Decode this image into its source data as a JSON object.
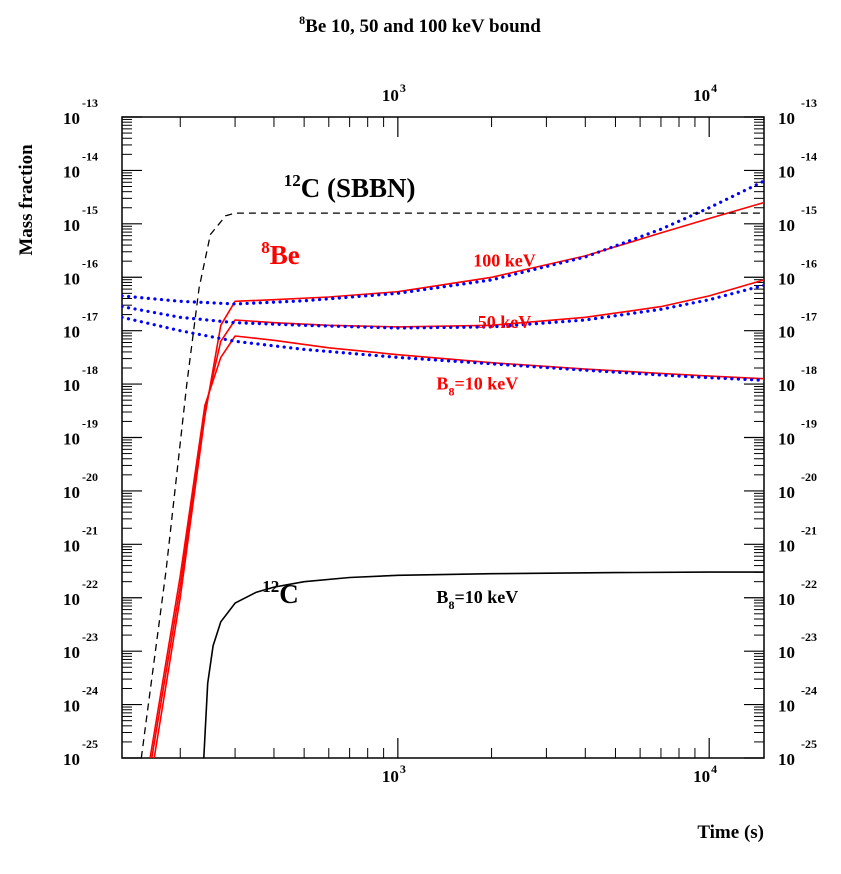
{
  "chart_data": {
    "type": "line",
    "title": {
      "sup": "8",
      "text": "Be 10, 50 and 100 keV bound"
    },
    "xlabel": "Time (s)",
    "ylabel": "Mass fraction",
    "x_scale": "log",
    "y_scale": "log",
    "xlim": [
      130,
      15000
    ],
    "ylim": [
      1e-25,
      1e-13
    ],
    "x_ticks": [
      {
        "base": "10",
        "exp": "3",
        "value": 1000
      },
      {
        "base": "10",
        "exp": "4",
        "value": 10000
      }
    ],
    "y_ticks": [
      {
        "base": "10",
        "exp": "-13",
        "value": -13
      },
      {
        "base": "10",
        "exp": "-14",
        "value": -14
      },
      {
        "base": "10",
        "exp": "-15",
        "value": -15
      },
      {
        "base": "10",
        "exp": "-16",
        "value": -16
      },
      {
        "base": "10",
        "exp": "-17",
        "value": -17
      },
      {
        "base": "10",
        "exp": "-18",
        "value": -18
      },
      {
        "base": "10",
        "exp": "-19",
        "value": -19
      },
      {
        "base": "10",
        "exp": "-20",
        "value": -20
      },
      {
        "base": "10",
        "exp": "-21",
        "value": -21
      },
      {
        "base": "10",
        "exp": "-22",
        "value": -22
      },
      {
        "base": "10",
        "exp": "-23",
        "value": -23
      },
      {
        "base": "10",
        "exp": "-24",
        "value": -24
      },
      {
        "base": "10",
        "exp": "-25",
        "value": -25
      }
    ],
    "colors": {
      "be8": "#ff0000",
      "fit": "#0000ff",
      "c12": "#000000",
      "sbbn": "#000000"
    },
    "series": [
      {
        "id": "be8-100",
        "style": "solid",
        "color": "#ff0000",
        "x": [
          165,
          200,
          240,
          270,
          300,
          400,
          600,
          1000,
          2000,
          4000,
          7000,
          10000,
          15000
        ],
        "log_y": [
          -25,
          -22,
          -18.6,
          -16.9,
          -16.45,
          -16.42,
          -16.37,
          -16.27,
          -16.0,
          -15.6,
          -15.17,
          -14.9,
          -14.6
        ]
      },
      {
        "id": "be8-50",
        "style": "solid",
        "color": "#ff0000",
        "x": [
          162,
          200,
          240,
          270,
          300,
          400,
          600,
          1000,
          2000,
          4000,
          7000,
          10000,
          15000
        ],
        "log_y": [
          -25,
          -21.8,
          -18.5,
          -17.2,
          -16.8,
          -16.85,
          -16.9,
          -16.93,
          -16.9,
          -16.75,
          -16.55,
          -16.35,
          -16.05
        ]
      },
      {
        "id": "be8-10",
        "style": "solid",
        "color": "#ff0000",
        "x": [
          160,
          200,
          240,
          270,
          300,
          400,
          600,
          1000,
          2000,
          4000,
          7000,
          10000,
          15000
        ],
        "log_y": [
          -25,
          -21.6,
          -18.4,
          -17.5,
          -17.1,
          -17.18,
          -17.32,
          -17.45,
          -17.6,
          -17.72,
          -17.8,
          -17.85,
          -17.9
        ]
      },
      {
        "id": "fit-100",
        "style": "dotted",
        "color": "#0000ff",
        "x": [
          130,
          200,
          300,
          500,
          1000,
          2000,
          4000,
          7000,
          10000,
          15000
        ],
        "log_y": [
          -16.35,
          -16.45,
          -16.5,
          -16.44,
          -16.3,
          -16.05,
          -15.62,
          -15.1,
          -14.7,
          -14.2
        ]
      },
      {
        "id": "fit-50",
        "style": "dotted",
        "color": "#0000ff",
        "x": [
          130,
          200,
          300,
          500,
          1000,
          2000,
          4000,
          7000,
          10000,
          15000
        ],
        "log_y": [
          -16.55,
          -16.75,
          -16.85,
          -16.9,
          -16.95,
          -16.93,
          -16.8,
          -16.6,
          -16.42,
          -16.15
        ]
      },
      {
        "id": "fit-10",
        "style": "dotted",
        "color": "#0000ff",
        "x": [
          130,
          200,
          300,
          500,
          1000,
          2000,
          4000,
          7000,
          10000,
          15000
        ],
        "log_y": [
          -16.75,
          -17.0,
          -17.2,
          -17.35,
          -17.5,
          -17.62,
          -17.74,
          -17.83,
          -17.88,
          -17.93
        ]
      },
      {
        "id": "c12-sbbn",
        "style": "dashed",
        "color": "#000000",
        "x": [
          150,
          180,
          210,
          230,
          250,
          280,
          300,
          320,
          400,
          1000,
          5000,
          15000
        ],
        "log_y": [
          -25,
          -21.5,
          -18.0,
          -16.2,
          -15.2,
          -14.85,
          -14.8,
          -14.8,
          -14.8,
          -14.8,
          -14.8,
          -14.8
        ]
      },
      {
        "id": "c12-10",
        "style": "solid",
        "color": "#000000",
        "x": [
          238,
          245,
          255,
          270,
          300,
          350,
          400,
          500,
          700,
          1000,
          2000,
          5000,
          10000,
          15000
        ],
        "log_y": [
          -25,
          -23.6,
          -22.9,
          -22.45,
          -22.1,
          -21.9,
          -21.8,
          -21.7,
          -21.62,
          -21.58,
          -21.55,
          -21.53,
          -21.52,
          -21.52
        ]
      }
    ],
    "annotations": [
      {
        "id": "c12-sbbn-label",
        "sup": "12",
        "text": "C (SBBN)",
        "color": "#000000",
        "at": [
          700,
          -14.5
        ]
      },
      {
        "id": "be8-label",
        "sup": "8",
        "text": "Be",
        "color": "#ff0000",
        "at": [
          420,
          -15.75
        ]
      },
      {
        "id": "be8-100-label",
        "text": "100 keV",
        "color": "#ff0000",
        "at": [
          2200,
          -15.8
        ]
      },
      {
        "id": "be8-50-label",
        "text": "50 keV",
        "color": "#ff0000",
        "at": [
          2200,
          -16.95
        ]
      },
      {
        "id": "be8-10-label",
        "text": "B",
        "sub": "8",
        "text2": "=10 keV",
        "color": "#ff0000",
        "at": [
          1800,
          -18.1
        ]
      },
      {
        "id": "c12-label",
        "sup": "12",
        "text": "C",
        "color": "#000000",
        "at": [
          420,
          -22.1
        ]
      },
      {
        "id": "c12-10-label",
        "text": "B",
        "sub": "8",
        "text2": "=10 keV",
        "color": "#000000",
        "at": [
          1800,
          -22.1
        ]
      }
    ]
  }
}
